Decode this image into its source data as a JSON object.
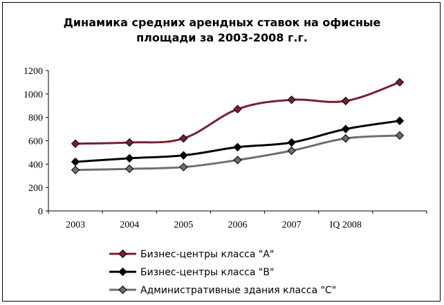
{
  "chart_data": {
    "type": "line",
    "title_lines": [
      "Динамика средних арендных ставок на офисные",
      "площади за 2003-2008 г.г."
    ],
    "categories": [
      "2003",
      "2004",
      "2005",
      "2006",
      "2007",
      "IQ 2008",
      ""
    ],
    "ylim": [
      0,
      1200
    ],
    "yticks": [
      "0",
      "200",
      "400",
      "600",
      "800",
      "1000",
      "1200"
    ],
    "grid": false,
    "legend_position": "bottom",
    "series": [
      {
        "name": "Бизнес-центры класса \"A\"",
        "color": "#7a1f2e",
        "values": [
          575,
          585,
          620,
          870,
          950,
          940,
          1100
        ]
      },
      {
        "name": "Бизнес-центры класса \"B\"",
        "color": "#000000",
        "values": [
          420,
          450,
          475,
          545,
          585,
          700,
          770
        ]
      },
      {
        "name": "Административные здания класса \"C\"",
        "color": "#6e6e6e",
        "values": [
          350,
          360,
          375,
          435,
          515,
          620,
          645
        ]
      }
    ]
  }
}
